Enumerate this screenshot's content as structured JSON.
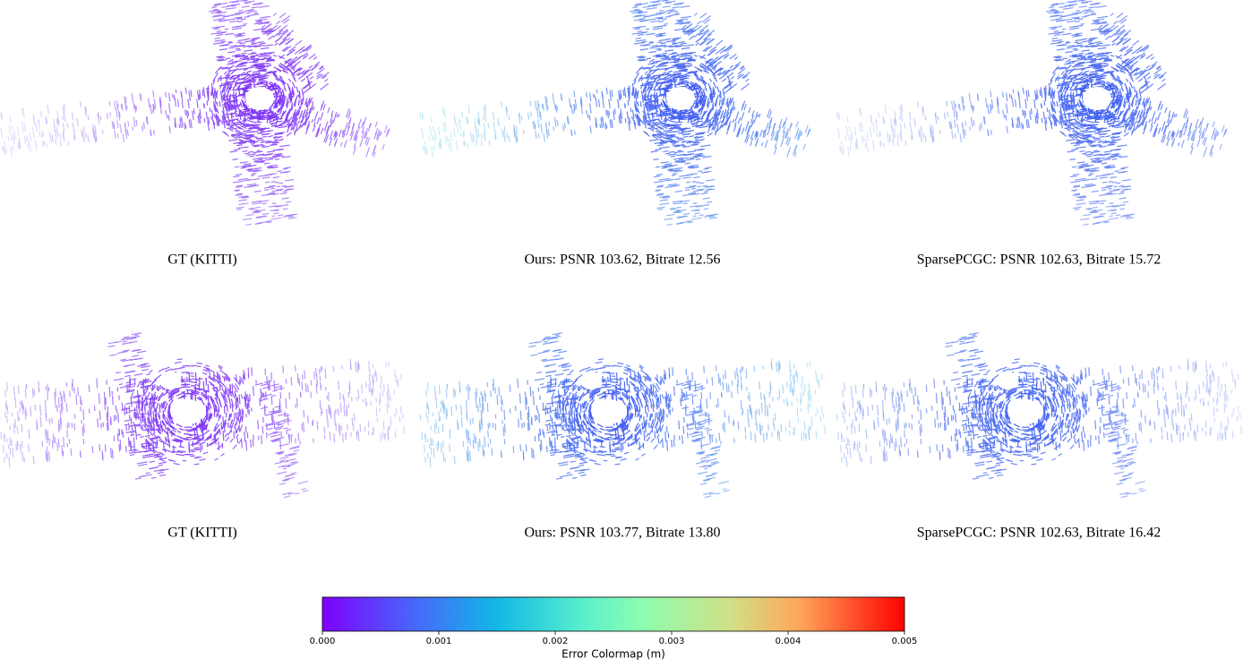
{
  "figure": {
    "panels": [
      {
        "caption": "GT (KITTI)"
      },
      {
        "caption": "Ours: PSNR 103.62, Bitrate 12.56"
      },
      {
        "caption": "SparsePCGC: PSNR 102.63, Bitrate 15.72"
      },
      {
        "caption": "GT (KITTI)"
      },
      {
        "caption": "Ours: PSNR 103.77, Bitrate 13.80"
      },
      {
        "caption": "SparsePCGC: PSNR 102.63, Bitrate 16.42"
      }
    ],
    "colorbar": {
      "label": "Error Colormap (m)",
      "lim": [
        0,
        0.005
      ],
      "ticks": [
        {
          "value": 0,
          "label": "0.000"
        },
        {
          "value": 0.001,
          "label": "0.001"
        },
        {
          "value": 0.002,
          "label": "0.002"
        },
        {
          "value": 0.003,
          "label": "0.003"
        },
        {
          "value": 0.004,
          "label": "0.004"
        },
        {
          "value": 0.005,
          "label": "0.005"
        }
      ]
    }
  }
}
